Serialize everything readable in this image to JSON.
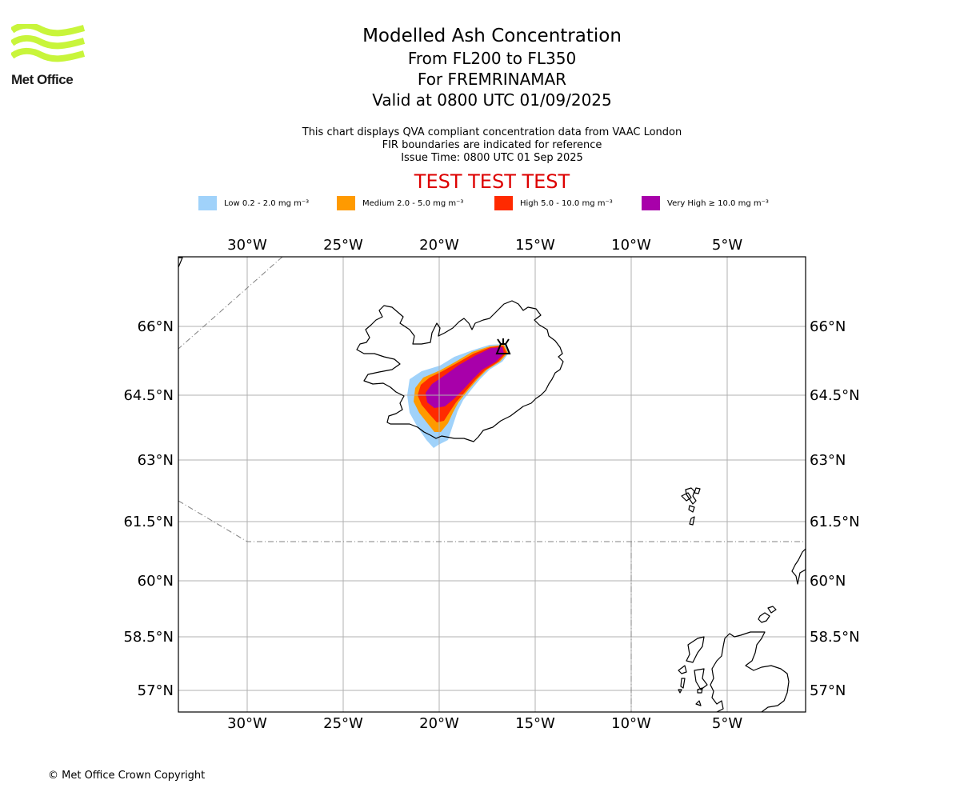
{
  "logo": {
    "name": "Met Office",
    "color": "#c8f53b"
  },
  "title": {
    "line1": "Modelled Ash Concentration",
    "line2": "From FL200 to FL350",
    "line3": "For FREMRINAMAR",
    "line4": "Valid at 0800 UTC 01/09/2025"
  },
  "info": {
    "line1": "This chart displays QVA compliant concentration data from VAAC London",
    "line2": "FIR boundaries are indicated for reference",
    "line3": "Issue Time: 0800 UTC 01 Sep 2025"
  },
  "banner": "TEST TEST TEST",
  "legend": [
    {
      "label": "Low 0.2 - 2.0 mg m⁻³",
      "color": "#a0d2fa"
    },
    {
      "label": "Medium 2.0 - 5.0 mg m⁻³",
      "color": "#ff9a00"
    },
    {
      "label": "High 5.0 - 10.0 mg m⁻³",
      "color": "#ff2a00"
    },
    {
      "label": "Very High ≥ 10.0 mg m⁻³",
      "color": "#a800aa"
    }
  ],
  "map": {
    "lon_ticks": [
      "30°W",
      "25°W",
      "20°W",
      "15°W",
      "10°W",
      "5°W"
    ],
    "lat_ticks": [
      "66°N",
      "64.5°N",
      "63°N",
      "61.5°N",
      "60°N",
      "58.5°N",
      "57°N"
    ],
    "lon_range": [
      -33.6,
      -1.0
    ],
    "lat_range": [
      56.5,
      67.5
    ],
    "volcano": {
      "name": "FREMRINAMAR",
      "lon": -16.7,
      "lat": 65.45
    },
    "features": [
      "ash-concentration-plume",
      "iceland-coastline",
      "faroe-islands-coastline",
      "scotland-coastline",
      "fir-boundaries",
      "volcano-marker"
    ]
  },
  "copyright": "© Met Office Crown Copyright"
}
